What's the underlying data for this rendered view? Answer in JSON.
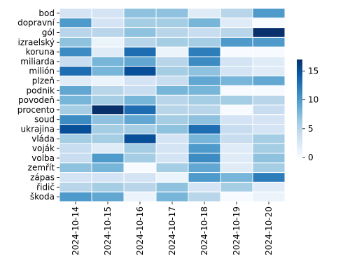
{
  "chart_data": {
    "type": "heatmap",
    "title": "",
    "xlabel": "",
    "ylabel": "",
    "columns": [
      "2024-10-14",
      "2024-10-15",
      "2024-10-16",
      "2024-10-17",
      "2024-10-18",
      "2024-10-19",
      "2024-10-20"
    ],
    "rows": [
      "bod",
      "dopravní",
      "gól",
      "izraelský",
      "koruna",
      "miliarda",
      "milión",
      "plzeň",
      "podnik",
      "povodeň",
      "procento",
      "soud",
      "ukrajina",
      "vláda",
      "voják",
      "volba",
      "zemřít",
      "zápas",
      "řidič",
      "škoda"
    ],
    "values": [
      [
        3,
        3,
        7,
        7,
        2,
        5,
        10
      ],
      [
        10,
        3,
        6,
        6,
        8,
        2,
        0
      ],
      [
        5,
        5,
        7,
        5,
        4,
        5,
        17
      ],
      [
        7,
        1,
        5,
        6,
        6,
        10,
        10
      ],
      [
        11,
        2,
        13,
        1,
        12,
        0,
        0
      ],
      [
        4,
        8,
        9,
        5,
        11,
        3,
        2
      ],
      [
        13,
        8,
        15,
        6,
        7,
        3,
        2
      ],
      [
        2,
        1,
        3,
        4,
        9,
        8,
        9
      ],
      [
        9,
        5,
        4,
        8,
        8,
        0,
        0
      ],
      [
        8,
        6,
        8,
        5,
        6,
        6,
        5
      ],
      [
        6,
        17,
        13,
        5,
        5,
        0,
        4
      ],
      [
        11,
        7,
        9,
        6,
        7,
        3,
        3
      ],
      [
        15,
        6,
        6,
        7,
        13,
        4,
        3
      ],
      [
        6,
        6,
        15,
        3,
        8,
        4,
        6
      ],
      [
        4,
        2,
        6,
        3,
        10,
        2,
        6
      ],
      [
        4,
        10,
        6,
        3,
        11,
        2,
        7
      ],
      [
        7,
        8,
        0,
        6,
        9,
        2,
        6
      ],
      [
        3,
        3,
        3,
        1,
        10,
        8,
        12
      ],
      [
        5,
        6,
        5,
        7,
        3,
        6,
        2
      ],
      [
        10,
        9,
        1,
        8,
        5,
        0,
        1
      ]
    ],
    "colorbar": {
      "min": 0,
      "max": 17,
      "ticks": [
        0,
        5,
        10,
        15
      ]
    },
    "colors": {
      "low": "#f7fbff",
      "high": "#08306b",
      "grid": "#ffffff"
    },
    "grid": true,
    "legend": "colorbar-right"
  }
}
